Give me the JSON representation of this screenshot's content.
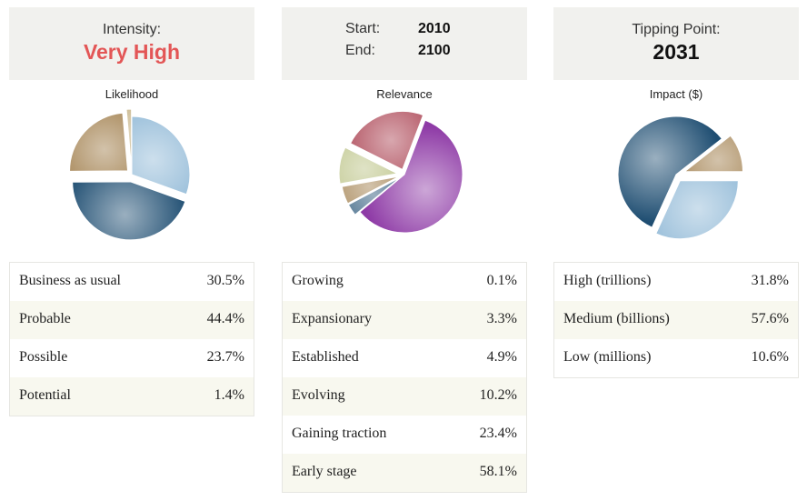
{
  "panels": [
    {
      "header": {
        "type": "label-value",
        "label": "Intensity:",
        "value": "Very High",
        "value_color": "#e35656"
      },
      "chart_title": "Likelihood",
      "rows": [
        {
          "label": "Business as usual",
          "value": "30.5%"
        },
        {
          "label": "Probable",
          "value": "44.4%"
        },
        {
          "label": "Possible",
          "value": "23.7%"
        },
        {
          "label": "Potential",
          "value": "1.4%"
        }
      ]
    },
    {
      "header": {
        "type": "start-end",
        "start_label": "Start:",
        "start_value": "2010",
        "end_label": "End:",
        "end_value": "2100"
      },
      "chart_title": "Relevance",
      "rows": [
        {
          "label": "Growing",
          "value": "0.1%"
        },
        {
          "label": "Expansionary",
          "value": "3.3%"
        },
        {
          "label": "Established",
          "value": "4.9%"
        },
        {
          "label": "Evolving",
          "value": "10.2%"
        },
        {
          "label": "Gaining traction",
          "value": "23.4%"
        },
        {
          "label": "Early stage",
          "value": "58.1%"
        }
      ]
    },
    {
      "header": {
        "type": "label-value",
        "label": "Tipping Point:",
        "value": "2031",
        "value_color": "#111111"
      },
      "chart_title": "Impact ($)",
      "rows": [
        {
          "label": "High (trillions)",
          "value": "31.8%"
        },
        {
          "label": "Medium (billions)",
          "value": "57.6%"
        },
        {
          "label": "Low (millions)",
          "value": "10.6%"
        }
      ]
    }
  ],
  "chart_data": [
    {
      "type": "pie",
      "title": "Likelihood",
      "categories": [
        "Business as usual",
        "Probable",
        "Possible",
        "Potential"
      ],
      "values": [
        30.5,
        44.4,
        23.7,
        1.4
      ],
      "colors": [
        "#8fb8d6",
        "#1f4e72",
        "#9c7843",
        "#b8a068"
      ]
    },
    {
      "type": "pie",
      "title": "Relevance",
      "categories": [
        "Growing",
        "Expansionary",
        "Established",
        "Evolving",
        "Gaining traction",
        "Early stage"
      ],
      "values": [
        0.1,
        3.3,
        4.9,
        10.2,
        23.4,
        58.1
      ],
      "colors": [
        "#8a2a3a",
        "#1f4e72",
        "#9c7843",
        "#b8c080",
        "#a83c4c",
        "#8e3aa6"
      ]
    },
    {
      "type": "pie",
      "title": "Impact ($)",
      "categories": [
        "High (trillions)",
        "Medium (billions)",
        "Low (millions)"
      ],
      "values": [
        31.8,
        57.6,
        10.6
      ],
      "colors": [
        "#8fb8d6",
        "#1f4e72",
        "#9c7843"
      ]
    }
  ]
}
